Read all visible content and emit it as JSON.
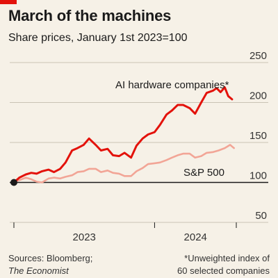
{
  "header": {
    "title": "March of the machines",
    "subtitle": "Share prices, January 1st 2023=100"
  },
  "footer": {
    "sources_line1": "Sources: Bloomberg;",
    "sources_line2": "The Economist",
    "note_line1": "*Unweighted index of",
    "note_line2": "60 selected companies"
  },
  "colors": {
    "brand_red": "#e3120b",
    "ai_series": "#e3120b",
    "sp500_series": "#f2a596",
    "background": "#f6f1e7"
  },
  "chart_data": {
    "type": "line",
    "title": "March of the machines",
    "subtitle": "Share prices, January 1st 2023=100",
    "x_tick_labels": [
      "2023",
      "2024"
    ],
    "y_ticks": [
      50,
      100,
      150,
      200,
      250
    ],
    "ylim": [
      50,
      250
    ],
    "xlim": [
      "2023-01-01",
      "2024-07-31"
    ],
    "baseline": 100,
    "grid": true,
    "legend": "inline labels",
    "series": [
      {
        "name": "AI hardware companies*",
        "color": "#e3120b",
        "points": [
          [
            "2023-01-01",
            100
          ],
          [
            "2023-01-15",
            106
          ],
          [
            "2023-02-01",
            110
          ],
          [
            "2023-02-15",
            112
          ],
          [
            "2023-03-01",
            111
          ],
          [
            "2023-03-15",
            114
          ],
          [
            "2023-04-01",
            116
          ],
          [
            "2023-04-15",
            113
          ],
          [
            "2023-05-01",
            117
          ],
          [
            "2023-05-15",
            125
          ],
          [
            "2023-06-01",
            140
          ],
          [
            "2023-06-15",
            143
          ],
          [
            "2023-07-01",
            147
          ],
          [
            "2023-07-15",
            155
          ],
          [
            "2023-08-01",
            147
          ],
          [
            "2023-08-15",
            140
          ],
          [
            "2023-09-01",
            142
          ],
          [
            "2023-09-15",
            134
          ],
          [
            "2023-10-01",
            133
          ],
          [
            "2023-10-15",
            137
          ],
          [
            "2023-11-01",
            131
          ],
          [
            "2023-11-15",
            146
          ],
          [
            "2023-12-01",
            155
          ],
          [
            "2023-12-15",
            160
          ],
          [
            "2024-01-01",
            163
          ],
          [
            "2024-01-15",
            172
          ],
          [
            "2024-02-01",
            185
          ],
          [
            "2024-02-15",
            190
          ],
          [
            "2024-03-01",
            197
          ],
          [
            "2024-03-15",
            197
          ],
          [
            "2024-04-01",
            193
          ],
          [
            "2024-04-15",
            186
          ],
          [
            "2024-05-01",
            200
          ],
          [
            "2024-05-15",
            212
          ],
          [
            "2024-06-01",
            215
          ],
          [
            "2024-06-10",
            218
          ],
          [
            "2024-06-20",
            213
          ],
          [
            "2024-07-01",
            219
          ],
          [
            "2024-07-10",
            208
          ],
          [
            "2024-07-20",
            204
          ]
        ]
      },
      {
        "name": "S&P 500",
        "color": "#f2a596",
        "points": [
          [
            "2023-01-01",
            100
          ],
          [
            "2023-01-15",
            103
          ],
          [
            "2023-02-01",
            106
          ],
          [
            "2023-02-15",
            104
          ],
          [
            "2023-03-01",
            101
          ],
          [
            "2023-03-15",
            100
          ],
          [
            "2023-04-01",
            105
          ],
          [
            "2023-04-15",
            106
          ],
          [
            "2023-05-01",
            105
          ],
          [
            "2023-05-15",
            107
          ],
          [
            "2023-06-01",
            109
          ],
          [
            "2023-06-15",
            113
          ],
          [
            "2023-07-01",
            114
          ],
          [
            "2023-07-15",
            117
          ],
          [
            "2023-08-01",
            117
          ],
          [
            "2023-08-15",
            113
          ],
          [
            "2023-09-01",
            115
          ],
          [
            "2023-09-15",
            112
          ],
          [
            "2023-10-01",
            111
          ],
          [
            "2023-10-15",
            108
          ],
          [
            "2023-11-01",
            108
          ],
          [
            "2023-11-15",
            114
          ],
          [
            "2023-12-01",
            118
          ],
          [
            "2023-12-15",
            123
          ],
          [
            "2024-01-01",
            124
          ],
          [
            "2024-01-15",
            125
          ],
          [
            "2024-02-01",
            128
          ],
          [
            "2024-02-15",
            131
          ],
          [
            "2024-03-01",
            134
          ],
          [
            "2024-03-15",
            136
          ],
          [
            "2024-04-01",
            136
          ],
          [
            "2024-04-15",
            131
          ],
          [
            "2024-05-01",
            133
          ],
          [
            "2024-05-15",
            137
          ],
          [
            "2024-06-01",
            138
          ],
          [
            "2024-06-15",
            140
          ],
          [
            "2024-07-01",
            143
          ],
          [
            "2024-07-15",
            147
          ],
          [
            "2024-07-20",
            145
          ],
          [
            "2024-07-25",
            143
          ]
        ]
      }
    ]
  }
}
